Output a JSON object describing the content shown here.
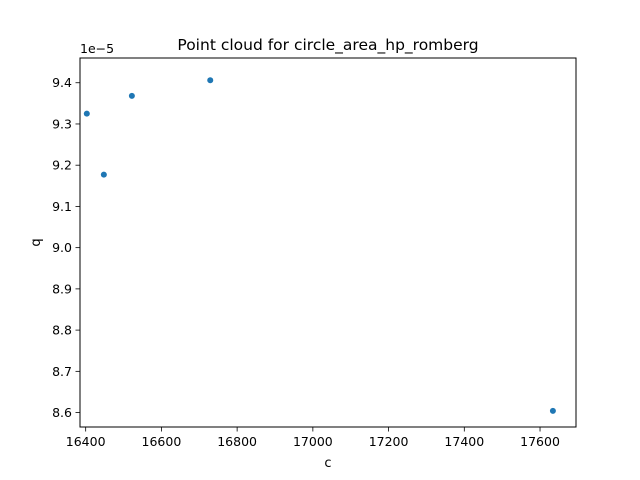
{
  "chart_data": {
    "type": "scatter",
    "title": "Point cloud for circle_area_hp_romberg",
    "xlabel": "c",
    "ylabel": "q",
    "y_offset_text": "1e−5",
    "xlim": [
      16385,
      17695
    ],
    "ylim": [
      8.565,
      9.46
    ],
    "x_ticks": [
      16400,
      16600,
      16800,
      17000,
      17200,
      17400,
      17600
    ],
    "y_ticks": [
      8.6,
      8.7,
      8.8,
      8.9,
      9.0,
      9.1,
      9.2,
      9.3,
      9.4
    ],
    "x_tick_labels": [
      "16400",
      "16600",
      "16800",
      "17000",
      "17200",
      "17400",
      "17600"
    ],
    "y_tick_labels": [
      "8.6",
      "8.7",
      "8.8",
      "8.9",
      "9.0",
      "9.1",
      "9.2",
      "9.3",
      "9.4"
    ],
    "grid": false,
    "marker_color": "#1f77b4",
    "points": [
      {
        "x": 16403,
        "y": 9.325
      },
      {
        "x": 16448,
        "y": 9.177
      },
      {
        "x": 16522,
        "y": 9.368
      },
      {
        "x": 16729,
        "y": 9.406
      },
      {
        "x": 17634,
        "y": 8.604
      }
    ]
  }
}
